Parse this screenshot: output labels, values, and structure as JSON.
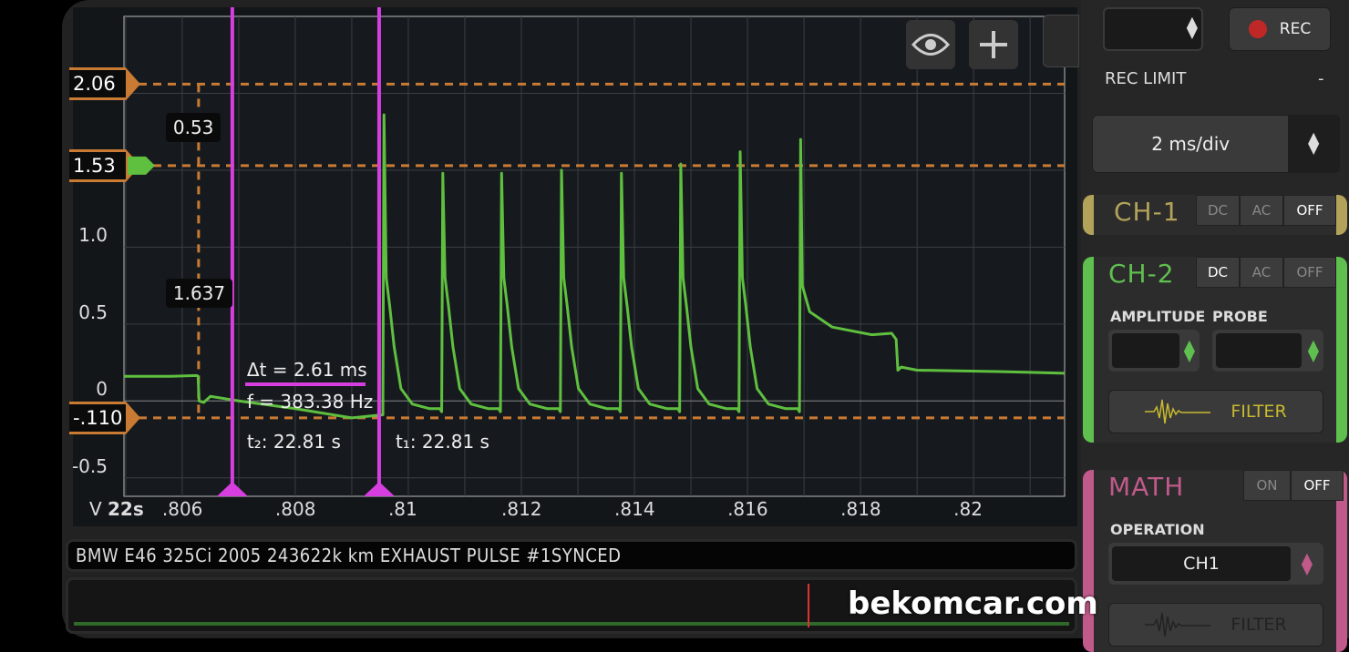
{
  "toolbar": {
    "eye_icon": "eye-icon",
    "add_icon": "plus-icon"
  },
  "chart_data": {
    "type": "line",
    "xlabel": "22s",
    "ylabel": "V",
    "xlim": [
      0.80497,
      0.82161
    ],
    "ylim": [
      -0.62,
      2.5
    ],
    "grid": true,
    "x_ticks": [
      ".806",
      ".808",
      ".81",
      ".812",
      ".814",
      ".816",
      ".818",
      ".82"
    ],
    "x_tick_values": [
      0.806,
      0.808,
      0.81,
      0.812,
      0.814,
      0.816,
      0.818,
      0.82
    ],
    "y_ticks": [
      "1.0",
      "0.5",
      "0",
      "-0.5"
    ],
    "y_tick_values": [
      1.0,
      0.5,
      0,
      -0.5
    ],
    "series": [
      {
        "color": "#5fbf3f",
        "baseline_points": [
          [
            0.80497,
            0.16
          ],
          [
            0.8058,
            0.16
          ],
          [
            0.80626,
            0.165
          ],
          [
            0.80628,
            0.16
          ],
          [
            0.8063,
            0.0
          ],
          [
            0.80638,
            -0.01
          ],
          [
            0.8065,
            0.03
          ],
          [
            0.807,
            0.0
          ],
          [
            0.808,
            -0.05
          ],
          [
            0.809,
            -0.11
          ],
          [
            0.80955,
            -0.09
          ]
        ],
        "pulses": [
          {
            "t": 0.80957,
            "peak": 1.86
          },
          {
            "t": 0.81061,
            "peak": 1.48
          },
          {
            "t": 0.81165,
            "peak": 1.48
          },
          {
            "t": 0.81271,
            "peak": 1.5
          },
          {
            "t": 0.81377,
            "peak": 1.48
          },
          {
            "t": 0.81482,
            "peak": 1.54
          },
          {
            "t": 0.81587,
            "peak": 1.62
          },
          {
            "t": 0.81694,
            "peak": 1.7
          }
        ],
        "tail_points": [
          [
            0.81694,
            1.7
          ],
          [
            0.81697,
            0.75
          ],
          [
            0.8171,
            0.58
          ],
          [
            0.8175,
            0.48
          ],
          [
            0.8182,
            0.43
          ],
          [
            0.81855,
            0.44
          ],
          [
            0.81863,
            0.4
          ],
          [
            0.81866,
            0.2
          ],
          [
            0.81872,
            0.22
          ],
          [
            0.819,
            0.2
          ],
          [
            0.8205,
            0.19
          ],
          [
            0.82161,
            0.18
          ]
        ]
      }
    ]
  },
  "cursors": {
    "horizontal": [
      {
        "label": "2.06",
        "value": 2.06
      },
      {
        "label": "1.53",
        "value": 1.53
      },
      {
        "label": "-.110",
        "value": -0.11
      }
    ],
    "vertical_marker_t": 0.80629,
    "vertical_labels": [
      "0.53",
      "1.637"
    ],
    "time": [
      {
        "label": "t₂: 22.81 s",
        "t": 0.806887
      },
      {
        "label": "t₁: 22.81 s",
        "t": 0.809484
      }
    ],
    "delta": "Δt = 2.61 ms",
    "freq": "f = 383.38 Hz",
    "colors": {
      "horizontal": "#c97b33",
      "time": "#d63ee0"
    }
  },
  "title_bar": "BMW E46 325Ci 2005 243622k km EXHAUST PULSE #1SYNCED",
  "overview": {
    "playhead_fraction": 0.735
  },
  "panel": {
    "rec_label": "REC",
    "rec_limit_label": "REC LIMIT",
    "rec_limit_value": "-",
    "timebase": "2 ms/div",
    "ch1": {
      "name": "CH-1",
      "modes": [
        "DC",
        "AC",
        "OFF"
      ],
      "active": "OFF",
      "color": "#b3a25a"
    },
    "ch2": {
      "name": "CH-2",
      "modes": [
        "DC",
        "AC",
        "OFF"
      ],
      "active": "DC",
      "color": "#5fbf4f",
      "amplitude_label": "AMPLITUDE",
      "probe_label": "PROBE",
      "filter_label": "FILTER"
    },
    "math": {
      "name": "MATH",
      "modes": [
        "ON",
        "OFF"
      ],
      "active": "OFF",
      "color": "#c05a8a",
      "operation_label": "OPERATION",
      "operation_value": "CH1",
      "filter_label": "FILTER"
    }
  },
  "watermark": "bekomcar.com"
}
